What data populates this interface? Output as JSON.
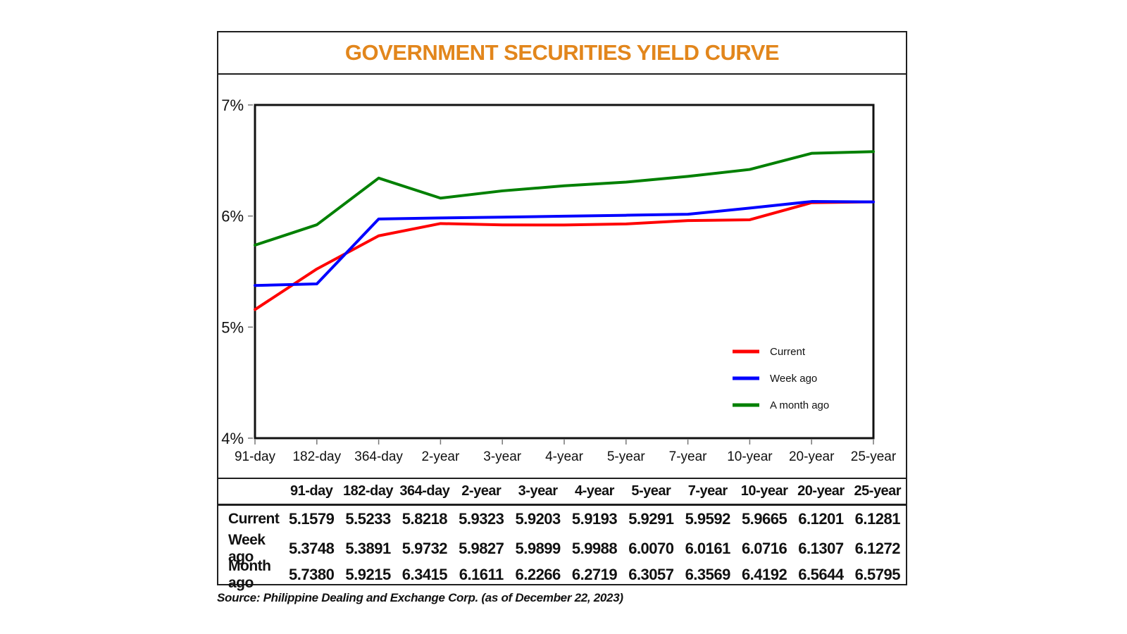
{
  "title": "GOVERNMENT SECURITIES YIELD CURVE",
  "source_note": "Source: Philippine Dealing and Exchange Corp. (as of December 22, 2023)",
  "colors": {
    "title": "#e2861c",
    "axis": "#111111",
    "current": "#ff0000",
    "week_ago": "#0000ff",
    "month_ago": "#008000"
  },
  "chart_data": {
    "type": "line",
    "title": "GOVERNMENT SECURITIES YIELD CURVE",
    "categories": [
      "91-day",
      "182-day",
      "364-day",
      "2-year",
      "3-year",
      "4-year",
      "5-year",
      "7-year",
      "10-year",
      "20-year",
      "25-year"
    ],
    "series": [
      {
        "name": "Current",
        "color": "#ff0000",
        "values": [
          5.1579,
          5.5233,
          5.8218,
          5.9323,
          5.9203,
          5.9193,
          5.9291,
          5.9592,
          5.9665,
          6.1201,
          6.1281
        ]
      },
      {
        "name": "Week ago",
        "color": "#0000ff",
        "values": [
          5.3748,
          5.3891,
          5.9732,
          5.9827,
          5.9899,
          5.9988,
          6.007,
          6.0161,
          6.0716,
          6.1307,
          6.1272
        ]
      },
      {
        "name": "A month ago",
        "color": "#008000",
        "values": [
          5.738,
          5.9215,
          6.3415,
          6.1611,
          6.2266,
          6.2719,
          6.3057,
          6.3569,
          6.4192,
          6.5644,
          6.5795
        ]
      }
    ],
    "ylim": [
      4,
      7
    ],
    "ytick_labels": [
      "4%",
      "5%",
      "6%",
      "7%"
    ],
    "ytick_format": "percent",
    "grid": false,
    "legend_position": "inside-bottom-right"
  },
  "table": {
    "column_headers": [
      "91-day",
      "182-day",
      "364-day",
      "2-year",
      "3-year",
      "4-year",
      "5-year",
      "7-year",
      "10-year",
      "20-year",
      "25-year"
    ],
    "rows": [
      {
        "label": "Current",
        "values": [
          "5.1579",
          "5.5233",
          "5.8218",
          "5.9323",
          "5.9203",
          "5.9193",
          "5.9291",
          "5.9592",
          "5.9665",
          "6.1201",
          "6.1281"
        ]
      },
      {
        "label": "Week ago",
        "values": [
          "5.3748",
          "5.3891",
          "5.9732",
          "5.9827",
          "5.9899",
          "5.9988",
          "6.0070",
          "6.0161",
          "6.0716",
          "6.1307",
          "6.1272"
        ]
      },
      {
        "label": "Month ago",
        "values": [
          "5.7380",
          "5.9215",
          "6.3415",
          "6.1611",
          "6.2266",
          "6.2719",
          "6.3057",
          "6.3569",
          "6.4192",
          "6.5644",
          "6.5795"
        ]
      }
    ]
  }
}
